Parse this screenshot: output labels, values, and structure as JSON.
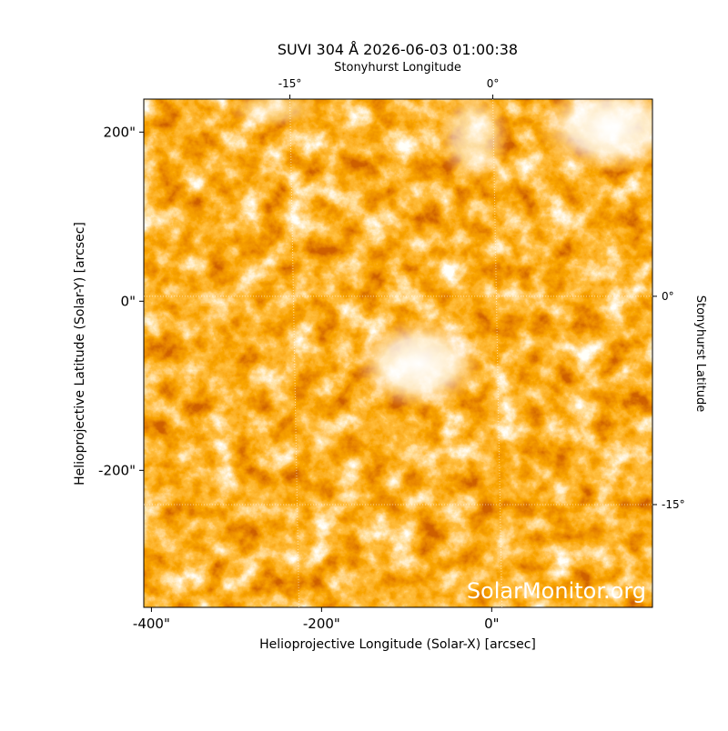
{
  "chart_data": {
    "type": "image",
    "title": "SUVI 304 Å 2026-06-03 01:00:38",
    "xlabel": "Helioprojective Longitude (Solar-X) [arcsec]",
    "ylabel": "Helioprojective Latitude (Solar-Y) [arcsec]",
    "x2label": "Stonyhurst Longitude",
    "y2label": "Stonyhurst Latitude",
    "watermark": "SolarMonitor.org",
    "xlim": [
      -409,
      189
    ],
    "ylim": [
      -362,
      239
    ],
    "xticks": [
      {
        "value": -400,
        "label": "-400\""
      },
      {
        "value": -200,
        "label": "-200\""
      },
      {
        "value": 0,
        "label": "0\""
      }
    ],
    "yticks": [
      {
        "value": -200,
        "label": "-200\""
      },
      {
        "value": 0,
        "label": "0\""
      },
      {
        "value": 200,
        "label": "200\""
      }
    ],
    "x2lim": [
      -25.8,
      11.8
    ],
    "x2ticks": [
      {
        "value": -15,
        "label": "-15°"
      },
      {
        "value": 0,
        "label": "0°"
      }
    ],
    "y2lim": [
      -22.4,
      14.2
    ],
    "y2ticks": [
      {
        "value": -15,
        "label": "-15°"
      },
      {
        "value": 0,
        "label": "0°"
      }
    ],
    "grid": true
  }
}
